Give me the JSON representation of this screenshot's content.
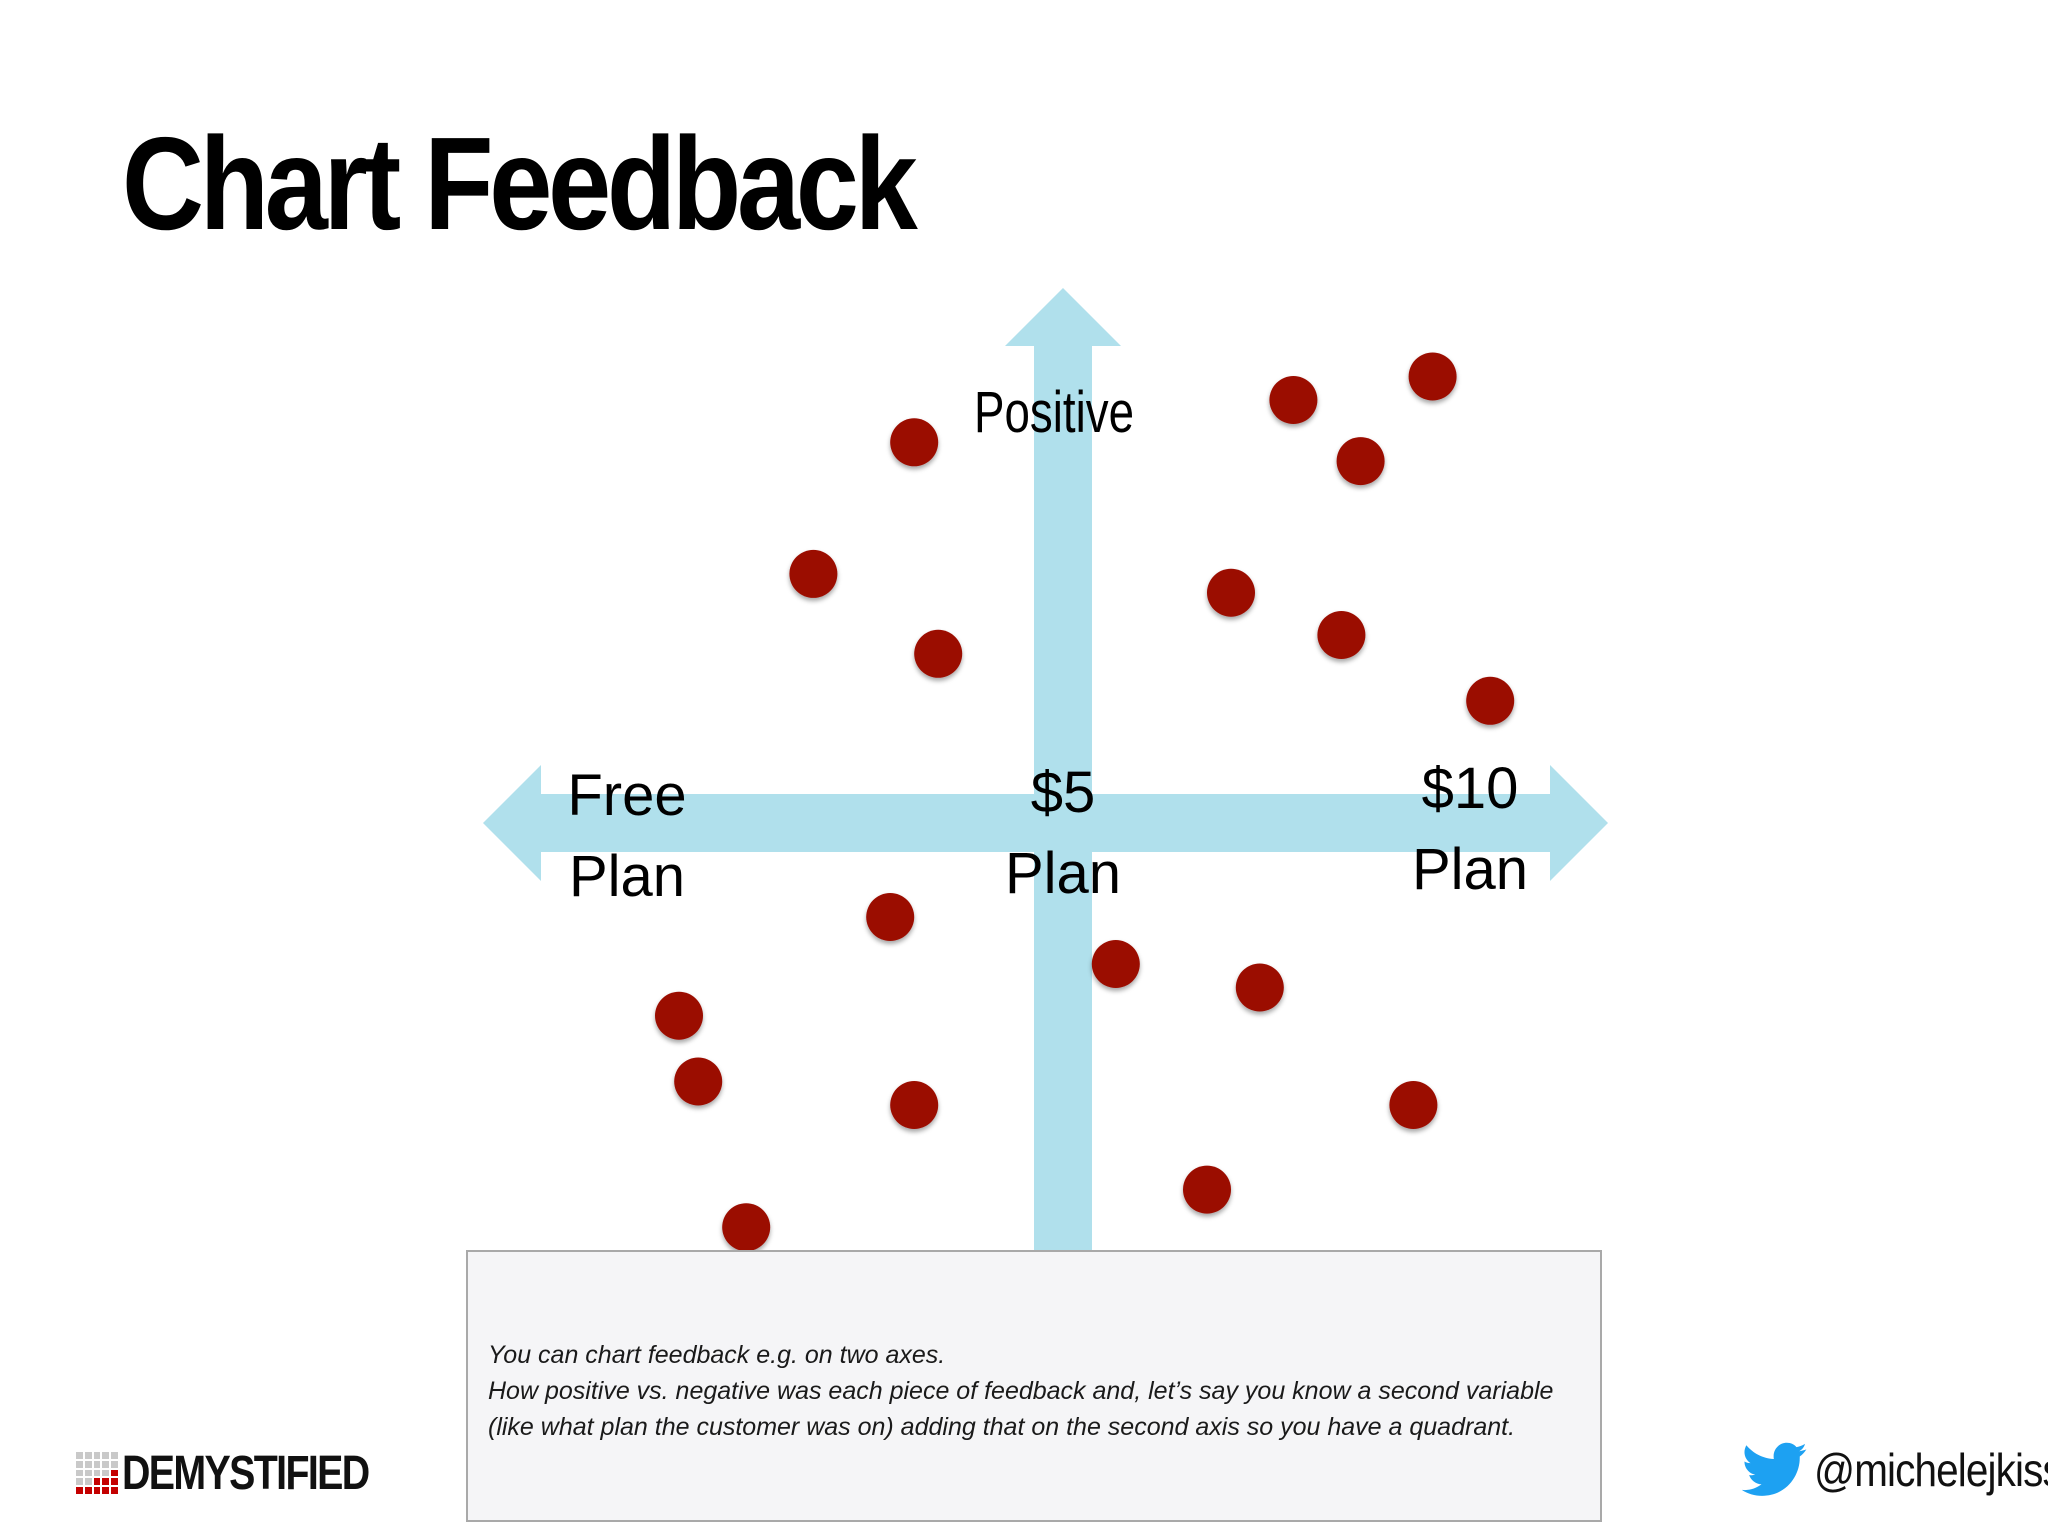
{
  "slide": {
    "title": "Chart Feedback"
  },
  "chart_data": {
    "type": "scatter",
    "x_axis_labels": [
      {
        "line1": "Free",
        "line2": "Plan"
      },
      {
        "line1": "$5",
        "line2": "Plan"
      },
      {
        "line1": "$10",
        "line2": "Plan"
      }
    ],
    "y_axis_label": "Positive",
    "x_range": [
      -1,
      1
    ],
    "y_range": [
      -1,
      1
    ],
    "point_color": "#9b0b05",
    "axis_color": "#b0e0ec",
    "points": [
      {
        "x": -0.31,
        "y": 0.81
      },
      {
        "x": -0.52,
        "y": 0.53
      },
      {
        "x": -0.26,
        "y": 0.36
      },
      {
        "x": 0.48,
        "y": 0.9
      },
      {
        "x": 0.77,
        "y": 0.95
      },
      {
        "x": 0.62,
        "y": 0.77
      },
      {
        "x": 0.35,
        "y": 0.49
      },
      {
        "x": 0.58,
        "y": 0.4
      },
      {
        "x": 0.89,
        "y": 0.26
      },
      {
        "x": -0.36,
        "y": -0.2
      },
      {
        "x": -0.8,
        "y": -0.41
      },
      {
        "x": -0.76,
        "y": -0.55
      },
      {
        "x": -0.31,
        "y": -0.6
      },
      {
        "x": 0.11,
        "y": -0.3
      },
      {
        "x": 0.41,
        "y": -0.35
      },
      {
        "x": 0.73,
        "y": -0.6
      },
      {
        "x": 0.3,
        "y": -0.78
      },
      {
        "x": -0.66,
        "y": -0.86
      }
    ]
  },
  "notes": {
    "lines": [
      "You can chart feedback e.g. on two axes.",
      "How positive vs. negative was each piece of feedback and, let’s say you know a second variable",
      "(like what plan the customer was on) adding that on the second axis so you have a quadrant."
    ]
  },
  "footer": {
    "logo_text": "DEMYSTIFIED",
    "twitter_handle": "@michelejkiss",
    "twitter_color": "#1da1f2"
  }
}
